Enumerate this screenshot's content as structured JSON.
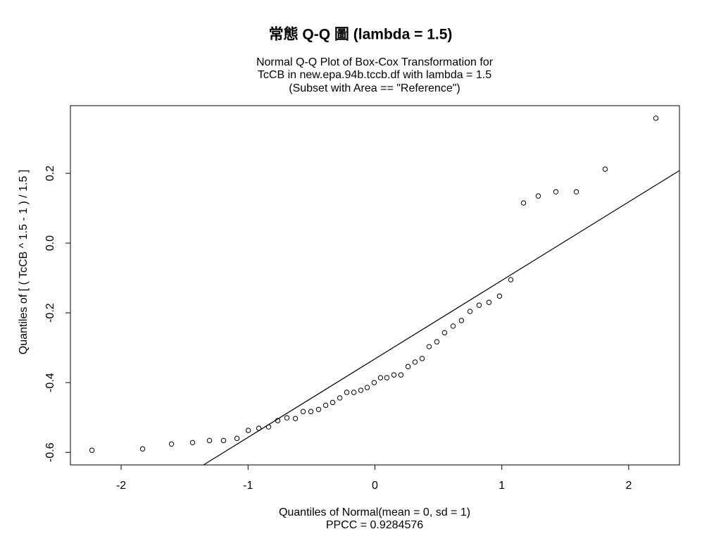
{
  "chart_data": {
    "type": "scatter",
    "title": "常態 Q-Q 圖 (lambda = 1.5)",
    "subtitle": [
      "Normal Q-Q Plot of Box-Cox Transformation for",
      "TcCB in new.epa.94b.tccb.df with lambda = 1.5",
      "(Subset with Area == \"Reference\")"
    ],
    "x_label": "Quantiles of Normal(mean = 0, sd = 1)",
    "annotation": "PPCC = 0.9284576",
    "y_label": "Quantiles of [ ( TcCB ^ 1.5 - 1 ) / 1.5 ]",
    "color": "#000000",
    "x": [
      -2.23,
      -1.831,
      -1.603,
      -1.437,
      -1.304,
      -1.193,
      -1.087,
      -0.998,
      -0.915,
      -0.838,
      -0.766,
      -0.694,
      -0.627,
      -0.566,
      -0.505,
      -0.444,
      -0.388,
      -0.333,
      -0.277,
      -0.222,
      -0.166,
      -0.111,
      -0.061,
      -0.006,
      0.044,
      0.094,
      0.15,
      0.205,
      0.261,
      0.316,
      0.372,
      0.427,
      0.488,
      0.549,
      0.616,
      0.682,
      0.749,
      0.821,
      0.899,
      0.982,
      1.071,
      1.171,
      1.287,
      1.426,
      1.587,
      1.814,
      2.214
    ],
    "values": [
      -0.594,
      -0.59,
      -0.576,
      -0.572,
      -0.566,
      -0.566,
      -0.56,
      -0.537,
      -0.531,
      -0.527,
      -0.509,
      -0.501,
      -0.503,
      -0.483,
      -0.483,
      -0.477,
      -0.465,
      -0.457,
      -0.444,
      -0.428,
      -0.428,
      -0.422,
      -0.414,
      -0.4,
      -0.386,
      -0.386,
      -0.378,
      -0.378,
      -0.354,
      -0.341,
      -0.331,
      -0.297,
      -0.283,
      -0.257,
      -0.238,
      -0.222,
      -0.196,
      -0.178,
      -0.17,
      -0.152,
      -0.105,
      0.115,
      0.135,
      0.147,
      0.147,
      0.212,
      0.358
    ],
    "fit_line": {
      "intercept": -0.332,
      "slope": 0.225
    },
    "xlim": [
      -2.4,
      2.4
    ],
    "xticks": [
      -2,
      -1,
      0,
      1,
      2
    ],
    "ylim": [
      -0.636,
      0.394
    ],
    "yticks": [
      -0.6,
      -0.4,
      -0.2,
      {
        "value": 0,
        "label": "0.0"
      },
      0.2
    ]
  }
}
